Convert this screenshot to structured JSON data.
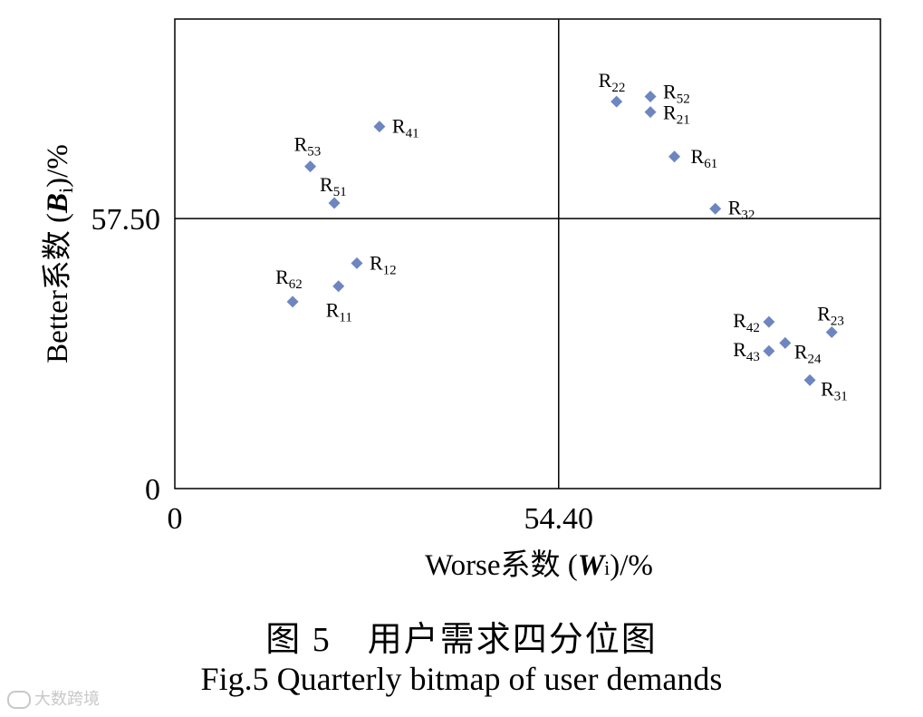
{
  "chart_data": {
    "type": "scatter",
    "x_label_prefix": "Worse系数 (",
    "x_label_var": "W",
    "x_label_sub": "i",
    "x_label_suffix": ")/%",
    "y_label_prefix": "Better系数 (",
    "y_label_var": "B",
    "y_label_sub": "i",
    "y_label_suffix": ")/%",
    "x_ticks": [
      {
        "value": 0,
        "label": "0"
      },
      {
        "value": 54.4,
        "label": "54.40"
      }
    ],
    "y_ticks": [
      {
        "value": 0,
        "label": "0"
      },
      {
        "value": 57.5,
        "label": "57.50"
      }
    ],
    "xlim": [
      0,
      100
    ],
    "ylim": [
      0,
      100
    ],
    "quadrant_lines": {
      "x": 54.4,
      "y": 57.5
    },
    "marker_color": "#6d86c0",
    "points": [
      {
        "name": "R",
        "sub": "22",
        "x": 62.6,
        "y": 82.4
      },
      {
        "name": "R",
        "sub": "52",
        "x": 67.4,
        "y": 83.5
      },
      {
        "name": "R",
        "sub": "21",
        "x": 67.4,
        "y": 80.2
      },
      {
        "name": "R",
        "sub": "61",
        "x": 70.8,
        "y": 70.7
      },
      {
        "name": "R",
        "sub": "32",
        "x": 76.6,
        "y": 59.6
      },
      {
        "name": "R",
        "sub": "41",
        "x": 29.0,
        "y": 77.1
      },
      {
        "name": "R",
        "sub": "53",
        "x": 19.2,
        "y": 68.6
      },
      {
        "name": "R",
        "sub": "51",
        "x": 22.6,
        "y": 60.8
      },
      {
        "name": "R",
        "sub": "12",
        "x": 25.8,
        "y": 48.0
      },
      {
        "name": "R",
        "sub": "11",
        "x": 23.2,
        "y": 43.1
      },
      {
        "name": "R",
        "sub": "62",
        "x": 16.7,
        "y": 39.8
      },
      {
        "name": "R",
        "sub": "42",
        "x": 84.2,
        "y": 35.5
      },
      {
        "name": "R",
        "sub": "23",
        "x": 93.1,
        "y": 33.3
      },
      {
        "name": "R",
        "sub": "24",
        "x": 86.5,
        "y": 31.0
      },
      {
        "name": "R",
        "sub": "43",
        "x": 84.2,
        "y": 29.3
      },
      {
        "name": "R",
        "sub": "31",
        "x": 90.0,
        "y": 23.1
      }
    ]
  },
  "caption": {
    "cn": "图 5　用户需求四分位图",
    "en": "Fig.5 Quarterly bitmap of user demands"
  },
  "watermark": "大数跨境"
}
